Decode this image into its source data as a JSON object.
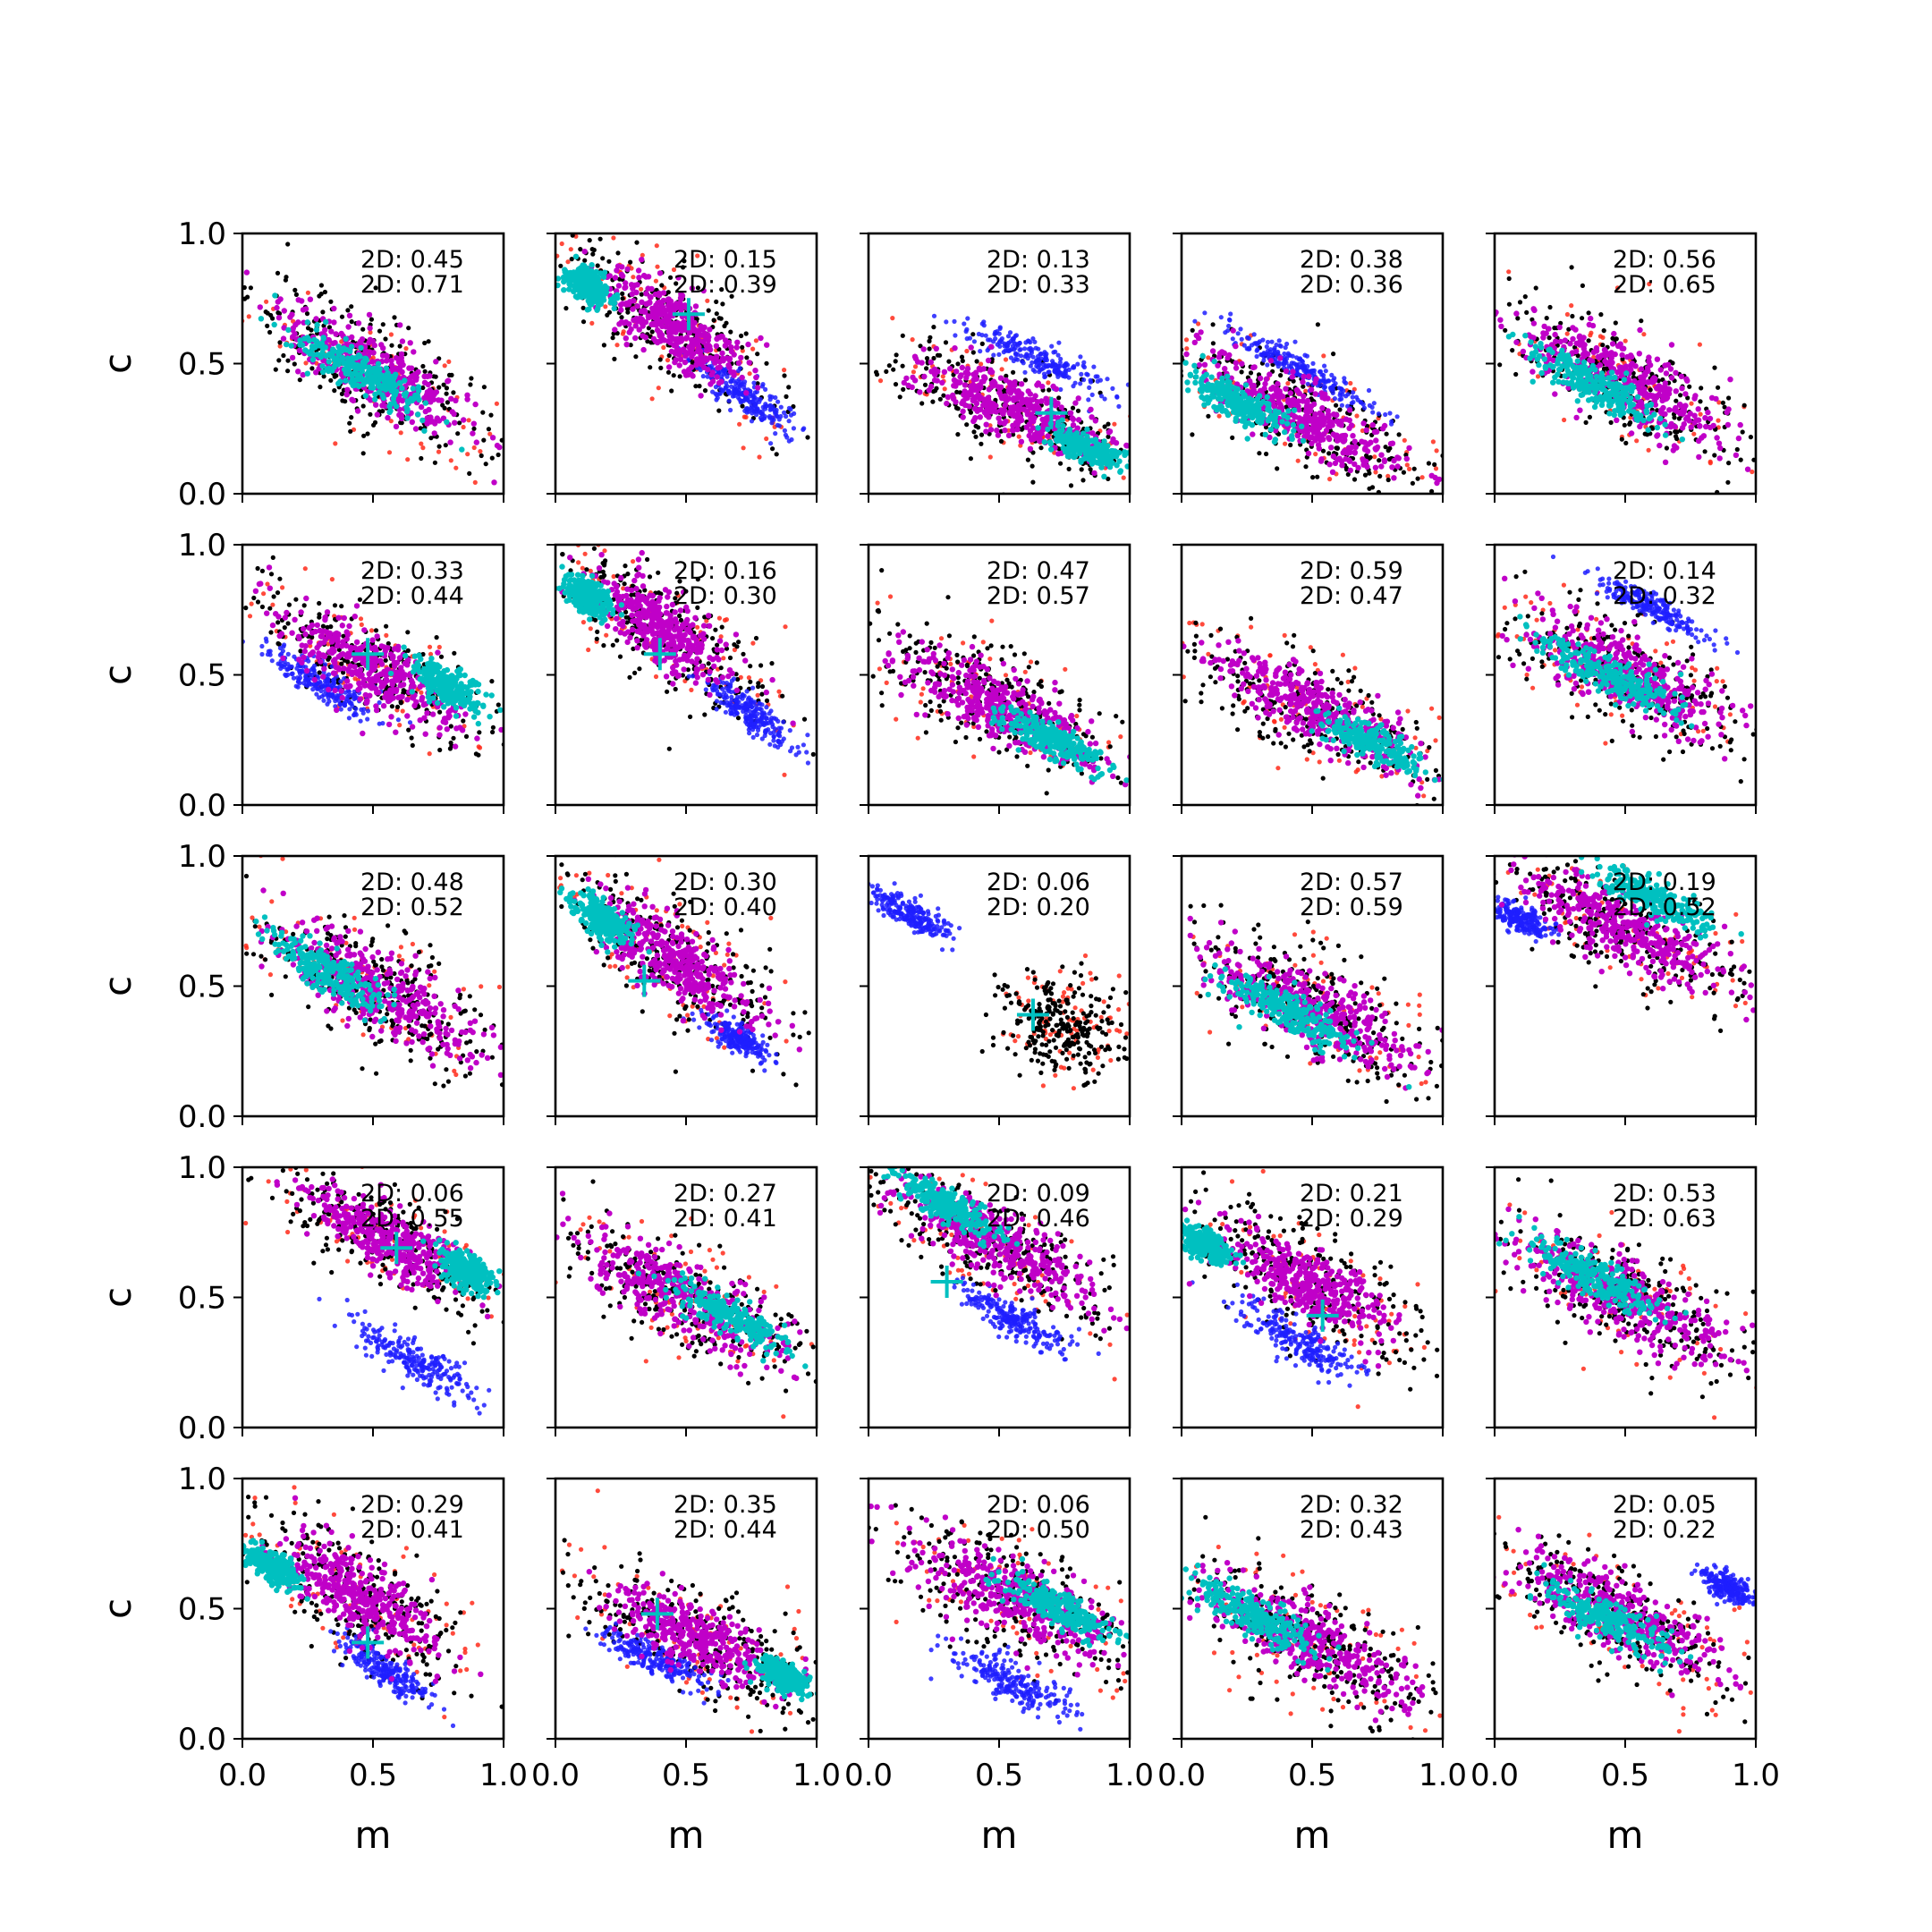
{
  "chart_data": {
    "type": "scatter",
    "layout": {
      "rows": 5,
      "cols": 5
    },
    "xlabel": "m",
    "ylabel": "c",
    "xlim": [
      0.0,
      1.0
    ],
    "ylim": [
      0.0,
      1.0
    ],
    "xticks": [
      "0.0",
      "0.5",
      "1.0"
    ],
    "yticks": [
      "0.0",
      "0.5",
      "1.0"
    ],
    "grid": false,
    "annotation_prefix": "2D:",
    "colors": {
      "outer": "#ff2a1a",
      "wide": "#000000",
      "alt": "#1f1fff",
      "mid": "#c000c8",
      "core": "#00c0c0",
      "marker": "#00c0c0"
    },
    "panels": [
      {
        "row": 0,
        "col": 0,
        "v1": "0.45",
        "v2": "0.71",
        "cx": 0.5,
        "cy": 0.47,
        "slope": -0.58,
        "core": [
          0.46,
          0.46
        ],
        "coreSpread": [
          0.28,
          0.07
        ],
        "midSpread": [
          0.42,
          0.13
        ],
        "wideSpread": [
          0.55,
          0.19
        ]
      },
      {
        "row": 0,
        "col": 1,
        "v1": "0.15",
        "v2": "0.39",
        "cx": 0.45,
        "cy": 0.65,
        "slope": -0.75,
        "marker": [
          0.51,
          0.69
        ],
        "core": [
          0.12,
          0.8
        ],
        "coreSpread": [
          0.1,
          0.06
        ],
        "midSpread": [
          0.3,
          0.12
        ],
        "wideSpread": [
          0.55,
          0.18
        ],
        "alt": [
          0.72,
          0.38
        ],
        "altSpread": [
          0.22,
          0.06
        ]
      },
      {
        "row": 0,
        "col": 2,
        "v1": "0.13",
        "v2": "0.33",
        "cx": 0.55,
        "cy": 0.33,
        "slope": -0.45,
        "marker": [
          0.7,
          0.31
        ],
        "core": [
          0.82,
          0.18
        ],
        "coreSpread": [
          0.14,
          0.05
        ],
        "midSpread": [
          0.4,
          0.11
        ],
        "wideSpread": [
          0.55,
          0.16
        ],
        "alt": [
          0.65,
          0.52
        ],
        "altSpread": [
          0.3,
          0.06
        ]
      },
      {
        "row": 0,
        "col": 3,
        "v1": "0.38",
        "v2": "0.36",
        "cx": 0.45,
        "cy": 0.3,
        "slope": -0.55,
        "core": [
          0.22,
          0.35
        ],
        "coreSpread": [
          0.22,
          0.06
        ],
        "midSpread": [
          0.45,
          0.12
        ],
        "wideSpread": [
          0.58,
          0.18
        ],
        "alt": [
          0.45,
          0.48
        ],
        "altSpread": [
          0.35,
          0.05
        ]
      },
      {
        "row": 0,
        "col": 4,
        "v1": "0.56",
        "v2": "0.65",
        "cx": 0.5,
        "cy": 0.43,
        "slope": -0.55,
        "core": [
          0.38,
          0.42
        ],
        "coreSpread": [
          0.26,
          0.07
        ],
        "midSpread": [
          0.44,
          0.13
        ],
        "wideSpread": [
          0.56,
          0.19
        ]
      },
      {
        "row": 1,
        "col": 0,
        "v1": "0.33",
        "v2": "0.44",
        "cx": 0.5,
        "cy": 0.52,
        "slope": -0.6,
        "marker": [
          0.48,
          0.58
        ],
        "core": [
          0.78,
          0.46
        ],
        "coreSpread": [
          0.16,
          0.06
        ],
        "midSpread": [
          0.42,
          0.12
        ],
        "wideSpread": [
          0.55,
          0.18
        ],
        "alt": [
          0.3,
          0.47
        ],
        "altSpread": [
          0.25,
          0.06
        ]
      },
      {
        "row": 1,
        "col": 1,
        "v1": "0.16",
        "v2": "0.30",
        "cx": 0.4,
        "cy": 0.68,
        "slope": -0.75,
        "marker": [
          0.4,
          0.58
        ],
        "core": [
          0.12,
          0.8
        ],
        "coreSpread": [
          0.1,
          0.06
        ],
        "midSpread": [
          0.3,
          0.12
        ],
        "wideSpread": [
          0.55,
          0.18
        ],
        "alt": [
          0.75,
          0.35
        ],
        "altSpread": [
          0.22,
          0.06
        ]
      },
      {
        "row": 1,
        "col": 2,
        "v1": "0.47",
        "v2": "0.57",
        "cx": 0.5,
        "cy": 0.38,
        "slope": -0.5,
        "core": [
          0.7,
          0.25
        ],
        "coreSpread": [
          0.22,
          0.06
        ],
        "midSpread": [
          0.45,
          0.12
        ],
        "wideSpread": [
          0.56,
          0.18
        ]
      },
      {
        "row": 1,
        "col": 3,
        "v1": "0.59",
        "v2": "0.47",
        "cx": 0.5,
        "cy": 0.37,
        "slope": -0.52,
        "core": [
          0.72,
          0.24
        ],
        "coreSpread": [
          0.22,
          0.06
        ],
        "midSpread": [
          0.45,
          0.12
        ],
        "wideSpread": [
          0.56,
          0.18
        ]
      },
      {
        "row": 1,
        "col": 4,
        "v1": "0.14",
        "v2": "0.32",
        "cx": 0.5,
        "cy": 0.5,
        "slope": -0.5,
        "core": [
          0.45,
          0.49
        ],
        "coreSpread": [
          0.3,
          0.07
        ],
        "midSpread": [
          0.45,
          0.13
        ],
        "wideSpread": [
          0.56,
          0.19
        ],
        "alt": [
          0.6,
          0.76
        ],
        "altSpread": [
          0.25,
          0.05
        ]
      },
      {
        "row": 2,
        "col": 0,
        "v1": "0.48",
        "v2": "0.52",
        "cx": 0.5,
        "cy": 0.5,
        "slope": -0.6,
        "core": [
          0.32,
          0.56
        ],
        "coreSpread": [
          0.25,
          0.07
        ],
        "midSpread": [
          0.44,
          0.13
        ],
        "wideSpread": [
          0.56,
          0.19
        ]
      },
      {
        "row": 2,
        "col": 1,
        "v1": "0.30",
        "v2": "0.40",
        "cx": 0.45,
        "cy": 0.6,
        "slope": -0.7,
        "marker": [
          0.34,
          0.52
        ],
        "core": [
          0.18,
          0.76
        ],
        "coreSpread": [
          0.14,
          0.06
        ],
        "midSpread": [
          0.36,
          0.12
        ],
        "wideSpread": [
          0.55,
          0.18
        ],
        "alt": [
          0.7,
          0.3
        ],
        "altSpread": [
          0.15,
          0.05
        ]
      },
      {
        "row": 2,
        "col": 2,
        "v1": "0.06",
        "v2": "0.20",
        "cx": 0.75,
        "cy": 0.35,
        "slope": -0.6,
        "marker": [
          0.63,
          0.39
        ],
        "alt": [
          0.15,
          0.78
        ],
        "altSpread": [
          0.18,
          0.05
        ],
        "wideSpread": [
          0.25,
          0.18
        ]
      },
      {
        "row": 2,
        "col": 3,
        "v1": "0.57",
        "v2": "0.59",
        "cx": 0.5,
        "cy": 0.42,
        "slope": -0.52,
        "core": [
          0.42,
          0.4
        ],
        "coreSpread": [
          0.28,
          0.07
        ],
        "midSpread": [
          0.45,
          0.13
        ],
        "wideSpread": [
          0.56,
          0.19
        ]
      },
      {
        "row": 2,
        "col": 4,
        "v1": "0.19",
        "v2": "0.52",
        "cx": 0.5,
        "cy": 0.72,
        "slope": -0.5,
        "core": [
          0.62,
          0.83
        ],
        "coreSpread": [
          0.25,
          0.06
        ],
        "midSpread": [
          0.45,
          0.12
        ],
        "wideSpread": [
          0.56,
          0.17
        ],
        "alt": [
          0.1,
          0.76
        ],
        "altSpread": [
          0.12,
          0.05
        ]
      },
      {
        "row": 3,
        "col": 0,
        "v1": "0.06",
        "v2": "0.55",
        "cx": 0.55,
        "cy": 0.72,
        "slope": -0.6,
        "marker": [
          0.59,
          0.69
        ],
        "core": [
          0.86,
          0.6
        ],
        "coreSpread": [
          0.12,
          0.06
        ],
        "midSpread": [
          0.35,
          0.11
        ],
        "wideSpread": [
          0.55,
          0.16
        ],
        "alt": [
          0.65,
          0.26
        ],
        "altSpread": [
          0.28,
          0.07
        ]
      },
      {
        "row": 3,
        "col": 1,
        "v1": "0.27",
        "v2": "0.41",
        "cx": 0.5,
        "cy": 0.5,
        "slope": -0.55,
        "core": [
          0.68,
          0.42
        ],
        "coreSpread": [
          0.25,
          0.06
        ],
        "midSpread": [
          0.45,
          0.13
        ],
        "wideSpread": [
          0.56,
          0.19
        ]
      },
      {
        "row": 3,
        "col": 2,
        "v1": "0.09",
        "v2": "0.46",
        "cx": 0.5,
        "cy": 0.7,
        "slope": -0.55,
        "marker": [
          0.3,
          0.56
        ],
        "core": [
          0.3,
          0.86
        ],
        "coreSpread": [
          0.22,
          0.06
        ],
        "midSpread": [
          0.45,
          0.12
        ],
        "wideSpread": [
          0.56,
          0.16
        ],
        "alt": [
          0.55,
          0.42
        ],
        "altSpread": [
          0.25,
          0.06
        ]
      },
      {
        "row": 3,
        "col": 3,
        "v1": "0.21",
        "v2": "0.29",
        "cx": 0.48,
        "cy": 0.55,
        "slope": -0.6,
        "marker": [
          0.54,
          0.43
        ],
        "core": [
          0.1,
          0.7
        ],
        "coreSpread": [
          0.12,
          0.05
        ],
        "midSpread": [
          0.35,
          0.12
        ],
        "wideSpread": [
          0.55,
          0.19
        ],
        "alt": [
          0.45,
          0.33
        ],
        "altSpread": [
          0.28,
          0.07
        ]
      },
      {
        "row": 3,
        "col": 4,
        "v1": "0.53",
        "v2": "0.63",
        "cx": 0.5,
        "cy": 0.5,
        "slope": -0.52,
        "core": [
          0.38,
          0.58
        ],
        "coreSpread": [
          0.28,
          0.07
        ],
        "midSpread": [
          0.45,
          0.13
        ],
        "wideSpread": [
          0.56,
          0.19
        ]
      },
      {
        "row": 4,
        "col": 0,
        "v1": "0.29",
        "v2": "0.41",
        "cx": 0.45,
        "cy": 0.55,
        "slope": -0.7,
        "marker": [
          0.48,
          0.37
        ],
        "core": [
          0.12,
          0.66
        ],
        "coreSpread": [
          0.12,
          0.05
        ],
        "midSpread": [
          0.35,
          0.12
        ],
        "wideSpread": [
          0.55,
          0.19
        ],
        "alt": [
          0.55,
          0.26
        ],
        "altSpread": [
          0.22,
          0.06
        ]
      },
      {
        "row": 4,
        "col": 1,
        "v1": "0.35",
        "v2": "0.44",
        "cx": 0.55,
        "cy": 0.38,
        "slope": -0.5,
        "marker": [
          0.39,
          0.48
        ],
        "core": [
          0.88,
          0.24
        ],
        "coreSpread": [
          0.1,
          0.05
        ],
        "midSpread": [
          0.35,
          0.11
        ],
        "wideSpread": [
          0.55,
          0.18
        ],
        "alt": [
          0.4,
          0.3
        ],
        "altSpread": [
          0.25,
          0.06
        ]
      },
      {
        "row": 4,
        "col": 2,
        "v1": "0.06",
        "v2": "0.50",
        "cx": 0.55,
        "cy": 0.55,
        "slope": -0.5,
        "core": [
          0.72,
          0.5
        ],
        "coreSpread": [
          0.22,
          0.06
        ],
        "midSpread": [
          0.45,
          0.13
        ],
        "wideSpread": [
          0.56,
          0.19
        ],
        "alt": [
          0.55,
          0.22
        ],
        "altSpread": [
          0.25,
          0.07
        ]
      },
      {
        "row": 4,
        "col": 3,
        "v1": "0.32",
        "v2": "0.43",
        "cx": 0.5,
        "cy": 0.37,
        "slope": -0.55,
        "core": [
          0.28,
          0.47
        ],
        "coreSpread": [
          0.25,
          0.07
        ],
        "midSpread": [
          0.45,
          0.13
        ],
        "wideSpread": [
          0.56,
          0.19
        ]
      },
      {
        "row": 4,
        "col": 4,
        "v1": "0.05",
        "v2": "0.22",
        "cx": 0.48,
        "cy": 0.48,
        "slope": -0.52,
        "core": [
          0.42,
          0.47
        ],
        "coreSpread": [
          0.28,
          0.07
        ],
        "midSpread": [
          0.45,
          0.13
        ],
        "wideSpread": [
          0.56,
          0.19
        ],
        "alt": [
          0.9,
          0.58
        ],
        "altSpread": [
          0.12,
          0.05
        ]
      }
    ]
  }
}
